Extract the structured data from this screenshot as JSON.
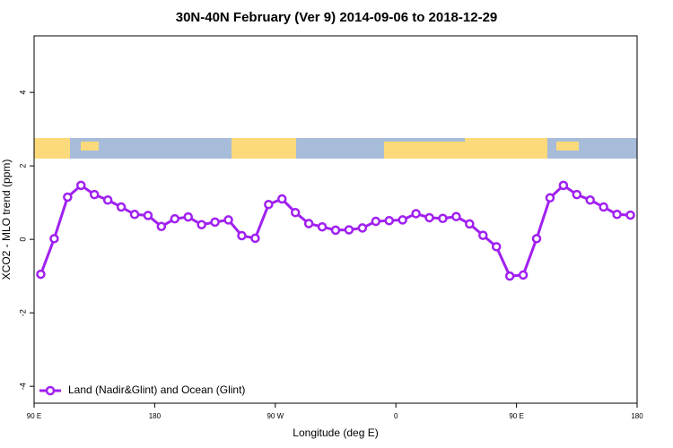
{
  "chart_data": {
    "type": "line",
    "title": "30N-40N February (Ver 9)   2014-09-06 to 2018-12-29",
    "x_label": "Longitude (deg E)",
    "y_label": "XCO2 - MLO trend (ppm)",
    "x": [
      95,
      105,
      115,
      125,
      135,
      145,
      155,
      165,
      175,
      185,
      195,
      205,
      215,
      225,
      235,
      245,
      255,
      265,
      275,
      285,
      295,
      305,
      315,
      325,
      335,
      345,
      355,
      365,
      375,
      385,
      395,
      405,
      415,
      425,
      435,
      445,
      455,
      465,
      475,
      485,
      495,
      505,
      515,
      525,
      535
    ],
    "series": [
      {
        "name": "Land (Nadir&Glint) and Ocean (Glint)",
        "color": "#a020f0",
        "values": [
          -0.95,
          0.02,
          1.15,
          1.47,
          1.22,
          1.07,
          0.88,
          0.68,
          0.65,
          0.35,
          0.56,
          0.61,
          0.4,
          0.47,
          0.53,
          0.1,
          0.03,
          0.95,
          1.1,
          0.73,
          0.43,
          0.34,
          0.25,
          0.26,
          0.31,
          0.49,
          0.51,
          0.53,
          0.7,
          0.59,
          0.57,
          0.62,
          0.42,
          0.11,
          -0.2,
          -1.0,
          -0.97,
          0.02,
          1.13,
          1.47,
          1.22,
          1.07,
          0.88,
          0.68,
          0.66
        ]
      }
    ],
    "xlim": [
      90,
      540
    ],
    "xticks": [
      {
        "value": 90,
        "label": "90 E"
      },
      180,
      {
        "value": 270,
        "label": "90 W"
      },
      {
        "value": 360,
        "label": "0"
      },
      {
        "value": 450,
        "label": "90 E"
      },
      {
        "value": 540,
        "label": "180"
      }
    ],
    "ylim": [
      -4.46,
      5.54
    ],
    "yticks": [
      -4,
      -2,
      0,
      2,
      4
    ],
    "legend": "bottom-left"
  }
}
